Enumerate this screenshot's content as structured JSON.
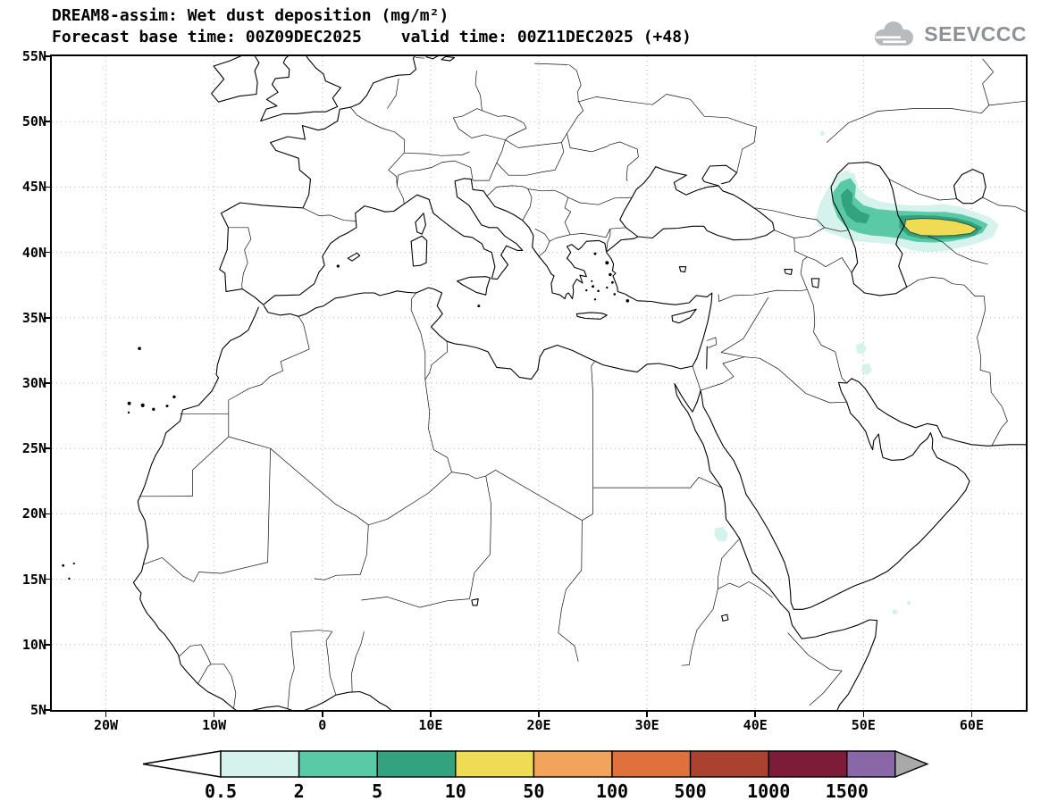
{
  "header": {
    "title": "DREAM8-assim: Wet dust deposition (mg/m²)",
    "forecast_base": "Forecast base time: 00Z09DEC2025",
    "valid_time": "valid time: 00Z11DEC2025 (+48)",
    "logo_text": "SEEVCCC",
    "logo_color": "#8d9296"
  },
  "map": {
    "lon_ticks": [
      {
        "label": "20W",
        "lon": -20
      },
      {
        "label": "10W",
        "lon": -10
      },
      {
        "label": "0",
        "lon": 0
      },
      {
        "label": "10E",
        "lon": 10
      },
      {
        "label": "20E",
        "lon": 20
      },
      {
        "label": "30E",
        "lon": 30
      },
      {
        "label": "40E",
        "lon": 40
      },
      {
        "label": "50E",
        "lon": 50
      },
      {
        "label": "60E",
        "lon": 60
      }
    ],
    "lat_ticks": [
      {
        "label": "55N",
        "lat": 55
      },
      {
        "label": "50N",
        "lat": 50
      },
      {
        "label": "45N",
        "lat": 45
      },
      {
        "label": "40N",
        "lat": 40
      },
      {
        "label": "35N",
        "lat": 35
      },
      {
        "label": "30N",
        "lat": 30
      },
      {
        "label": "25N",
        "lat": 25
      },
      {
        "label": "20N",
        "lat": 20
      },
      {
        "label": "15N",
        "lat": 15
      },
      {
        "label": "10N",
        "lat": 10
      },
      {
        "label": "5N",
        "lat": 5
      }
    ]
  },
  "colorbar": {
    "labels": [
      "0.5",
      "2",
      "5",
      "10",
      "50",
      "100",
      "500",
      "1000",
      "1500"
    ],
    "colors": [
      "#ffffff",
      "#d6f2ec",
      "#5acaa6",
      "#33a37f",
      "#efdc54",
      "#f2a45c",
      "#e0703c",
      "#ab4230",
      "#7c1c38",
      "#8a68a8",
      "#a9a9a9"
    ]
  },
  "chart_data": {
    "type": "heatmap",
    "title": "DREAM8-assim: Wet dust deposition (mg/m²)",
    "model": "DREAM8-assim",
    "variable": "Wet dust deposition",
    "units": "mg/m²",
    "forecast_base_time": "00Z09DEC2025",
    "valid_time": "00Z11DEC2025",
    "forecast_hour": "+48",
    "extent": {
      "lon_min": -25,
      "lon_max": 65,
      "lat_min": 5,
      "lat_max": 55
    },
    "contour_levels_mg_m2": [
      0.5,
      2,
      5,
      10,
      50,
      100,
      500,
      1000,
      1500
    ],
    "graticule": "dotted grid every 10 deg lon x 5 deg lat",
    "legend_position": "bottom",
    "deposition_regions": [
      {
        "area": "Caspian Sea / Central Asia (Turkmenistan-Uzbekistan-Kazakhstan)",
        "lon_range": [
          45.5,
          62.5
        ],
        "lat_range": [
          40,
          46.5
        ],
        "peak_band_mg_m2": "10-50"
      },
      {
        "area": "Zagros foothills, western Iran",
        "lon_range": [
          49,
          51
        ],
        "lat_range": [
          30.5,
          33
        ],
        "peak_band_mg_m2": "0.5-2"
      },
      {
        "area": "Sudan / Eritrea border near Red Sea",
        "lon_range": [
          36,
          37.6
        ],
        "lat_range": [
          17.8,
          19
        ],
        "peak_band_mg_m2": "0.5-2"
      },
      {
        "area": "Gulf of Aden / Somali coast specks",
        "lon_range": [
          52.5,
          54.5
        ],
        "lat_range": [
          12,
          13.5
        ],
        "peak_band_mg_m2": "0.5-2"
      },
      {
        "area": "North Caspian lowland speck",
        "lon_range": [
          45.8,
          46.6
        ],
        "lat_range": [
          48.8,
          49.5
        ],
        "peak_band_mg_m2": "0.5-2"
      }
    ]
  }
}
